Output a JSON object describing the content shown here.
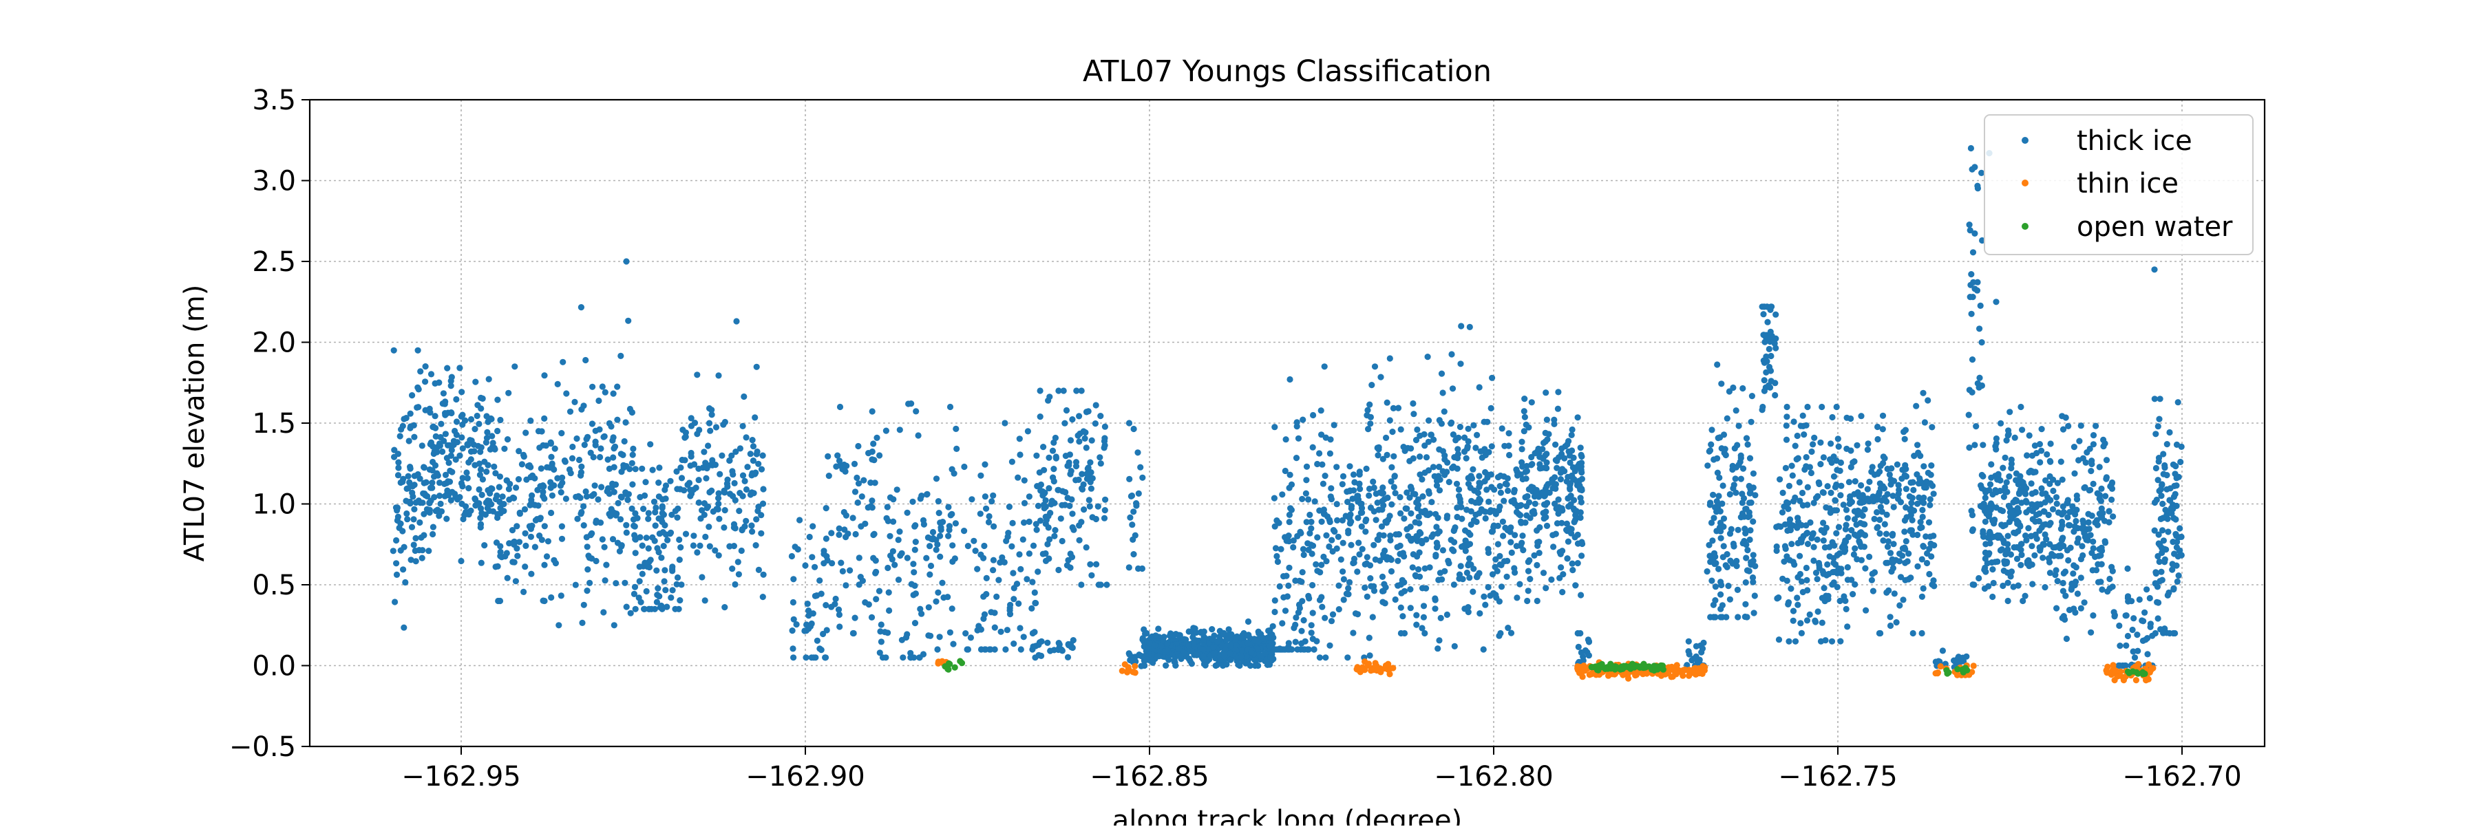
{
  "chart_data": {
    "type": "scatter",
    "title": "ATL07 Youngs Classification",
    "xlabel": "along track long (degree)",
    "ylabel": "ATL07 elevation (m)",
    "xlim": [
      -162.972,
      -162.688
    ],
    "ylim": [
      -0.5,
      3.5
    ],
    "xticks": [
      -162.95,
      -162.9,
      -162.85,
      -162.8,
      -162.75,
      -162.7
    ],
    "xtick_labels": [
      "−162.95",
      "−162.90",
      "−162.85",
      "−162.80",
      "−162.75",
      "−162.70"
    ],
    "yticks": [
      -0.5,
      0.0,
      0.5,
      1.0,
      1.5,
      2.0,
      2.5,
      3.0,
      3.5
    ],
    "ytick_labels": [
      "−0.5",
      "0.0",
      "0.5",
      "1.0",
      "1.5",
      "2.0",
      "2.5",
      "3.0",
      "3.5"
    ],
    "grid": true,
    "legend_position": "top-right",
    "series": [
      {
        "name": "thick ice",
        "color": "#1f77b4",
        "segments": [
          {
            "x0": -162.96,
            "x1": -162.954,
            "center": 1.15,
            "spread": 0.35,
            "min": 0.22,
            "max": 1.95,
            "n": 120
          },
          {
            "x0": -162.954,
            "x1": -162.945,
            "center": 1.25,
            "spread": 0.25,
            "min": 0.45,
            "max": 1.9,
            "n": 170
          },
          {
            "x0": -162.945,
            "x1": -162.936,
            "center": 1.0,
            "spread": 0.3,
            "min": 0.4,
            "max": 1.85,
            "n": 130
          },
          {
            "x0": -162.936,
            "x1": -162.925,
            "center": 1.05,
            "spread": 0.4,
            "min": 0.25,
            "max": 2.5,
            "n": 150
          },
          {
            "x0": -162.925,
            "x1": -162.918,
            "center": 0.75,
            "spread": 0.3,
            "min": 0.35,
            "max": 2.2,
            "n": 110
          },
          {
            "x0": -162.918,
            "x1": -162.906,
            "center": 1.1,
            "spread": 0.3,
            "min": 0.35,
            "max": 2.15,
            "n": 150
          },
          {
            "x0": -162.902,
            "x1": -162.897,
            "center": 0.3,
            "spread": 0.3,
            "min": 0.05,
            "max": 0.9,
            "n": 45
          },
          {
            "x0": -162.897,
            "x1": -162.89,
            "center": 0.8,
            "spread": 0.4,
            "min": 0.2,
            "max": 1.6,
            "n": 70
          },
          {
            "x0": -162.89,
            "x1": -162.882,
            "center": 0.6,
            "spread": 0.4,
            "min": 0.05,
            "max": 1.85,
            "n": 80
          },
          {
            "x0": -162.882,
            "x1": -162.878,
            "center": 0.7,
            "spread": 0.4,
            "min": 0.1,
            "max": 1.6,
            "n": 45
          },
          {
            "x0": -162.877,
            "x1": -162.866,
            "center": 0.6,
            "spread": 0.45,
            "min": 0.1,
            "max": 1.5,
            "n": 100
          },
          {
            "x0": -162.867,
            "x1": -162.861,
            "center": 0.1,
            "spread": 0.04,
            "min": 0.05,
            "max": 0.2,
            "n": 25
          },
          {
            "x0": -162.866,
            "x1": -162.856,
            "center": 1.1,
            "spread": 0.3,
            "min": 0.5,
            "max": 1.7,
            "n": 140
          },
          {
            "x0": -162.853,
            "x1": -162.851,
            "center": 1.0,
            "spread": 0.25,
            "min": 0.6,
            "max": 1.5,
            "n": 20
          },
          {
            "x0": -162.853,
            "x1": -162.851,
            "center": 0.05,
            "spread": 0.04,
            "min": -0.02,
            "max": 0.1,
            "n": 12
          },
          {
            "x0": -162.851,
            "x1": -162.832,
            "center": 0.11,
            "spread": 0.05,
            "min": 0.0,
            "max": 0.35,
            "n": 600
          },
          {
            "x0": -162.832,
            "x1": -162.826,
            "center": 0.6,
            "spread": 0.5,
            "min": 0.1,
            "max": 2.0,
            "n": 110
          },
          {
            "x0": -162.826,
            "x1": -162.817,
            "center": 0.8,
            "spread": 0.4,
            "min": 0.05,
            "max": 1.85,
            "n": 150
          },
          {
            "x0": -162.817,
            "x1": -162.81,
            "center": 0.9,
            "spread": 0.4,
            "min": 0.2,
            "max": 1.9,
            "n": 150
          },
          {
            "x0": -162.81,
            "x1": -162.796,
            "center": 1.0,
            "spread": 0.35,
            "min": 0.1,
            "max": 2.1,
            "n": 280
          },
          {
            "x0": -162.796,
            "x1": -162.787,
            "center": 1.05,
            "spread": 0.3,
            "min": 0.4,
            "max": 1.85,
            "n": 220
          },
          {
            "x0": -162.788,
            "x1": -162.786,
            "center": 0.1,
            "spread": 0.05,
            "min": 0.0,
            "max": 0.2,
            "n": 15
          },
          {
            "x0": -162.772,
            "x1": -162.769,
            "center": 0.05,
            "spread": 0.05,
            "min": 0.0,
            "max": 0.15,
            "n": 20
          },
          {
            "x0": -162.769,
            "x1": -162.762,
            "center": 0.9,
            "spread": 0.4,
            "min": 0.3,
            "max": 2.1,
            "n": 160
          },
          {
            "x0": -162.761,
            "x1": -162.759,
            "center": 2.0,
            "spread": 0.2,
            "min": 1.5,
            "max": 2.22,
            "n": 45
          },
          {
            "x0": -162.759,
            "x1": -162.748,
            "center": 0.85,
            "spread": 0.35,
            "min": 0.15,
            "max": 1.6,
            "n": 230
          },
          {
            "x0": -162.748,
            "x1": -162.736,
            "center": 0.95,
            "spread": 0.3,
            "min": 0.2,
            "max": 1.95,
            "n": 240
          },
          {
            "x0": -162.736,
            "x1": -162.731,
            "center": 0.03,
            "spread": 0.03,
            "min": -0.02,
            "max": 0.1,
            "n": 20
          },
          {
            "x0": -162.731,
            "x1": -162.729,
            "center": 1.8,
            "spread": 0.8,
            "min": 0.5,
            "max": 3.2,
            "n": 45
          },
          {
            "x0": -162.729,
            "x1": -162.719,
            "center": 0.95,
            "spread": 0.25,
            "min": 0.4,
            "max": 1.6,
            "n": 260
          },
          {
            "x0": -162.719,
            "x1": -162.71,
            "center": 0.8,
            "spread": 0.3,
            "min": 0.1,
            "max": 1.55,
            "n": 180
          },
          {
            "x0": -162.71,
            "x1": -162.704,
            "center": 0.15,
            "spread": 0.15,
            "min": 0.0,
            "max": 0.6,
            "n": 50
          },
          {
            "x0": -162.704,
            "x1": -162.7,
            "center": 0.9,
            "spread": 0.35,
            "min": 0.2,
            "max": 1.65,
            "n": 110
          }
        ],
        "outliers": [
          {
            "x": -162.704,
            "y": 2.45
          },
          {
            "x": -162.727,
            "y": 2.25
          },
          {
            "x": -162.926,
            "y": 2.5
          },
          {
            "x": -162.91,
            "y": 2.13
          },
          {
            "x": -162.728,
            "y": 3.17
          }
        ]
      },
      {
        "name": "thin ice",
        "color": "#ff7f0e",
        "segments": [
          {
            "x0": -162.881,
            "x1": -162.879,
            "center": 0.02,
            "spread": 0.01,
            "min": 0.0,
            "max": 0.04,
            "n": 6
          },
          {
            "x0": -162.854,
            "x1": -162.852,
            "center": -0.02,
            "spread": 0.02,
            "min": -0.05,
            "max": 0.02,
            "n": 10
          },
          {
            "x0": -162.82,
            "x1": -162.814,
            "center": -0.01,
            "spread": 0.02,
            "min": -0.06,
            "max": 0.03,
            "n": 30
          },
          {
            "x0": -162.788,
            "x1": -162.769,
            "center": -0.03,
            "spread": 0.02,
            "min": -0.08,
            "max": 0.02,
            "n": 140
          },
          {
            "x0": -162.736,
            "x1": -162.73,
            "center": -0.03,
            "spread": 0.02,
            "min": -0.06,
            "max": 0.0,
            "n": 18
          },
          {
            "x0": -162.711,
            "x1": -162.704,
            "center": -0.04,
            "spread": 0.03,
            "min": -0.09,
            "max": 0.02,
            "n": 40
          }
        ]
      },
      {
        "name": "open water",
        "color": "#2ca02c",
        "segments": [
          {
            "x0": -162.88,
            "x1": -162.877,
            "center": 0.0,
            "spread": 0.02,
            "min": -0.03,
            "max": 0.03,
            "n": 8
          },
          {
            "x0": -162.786,
            "x1": -162.775,
            "center": -0.01,
            "spread": 0.01,
            "min": -0.03,
            "max": 0.01,
            "n": 80
          },
          {
            "x0": -162.735,
            "x1": -162.731,
            "center": -0.03,
            "spread": 0.01,
            "min": -0.05,
            "max": 0.0,
            "n": 8
          },
          {
            "x0": -162.708,
            "x1": -162.705,
            "center": -0.04,
            "spread": 0.01,
            "min": -0.06,
            "max": -0.02,
            "n": 8
          }
        ]
      }
    ]
  }
}
